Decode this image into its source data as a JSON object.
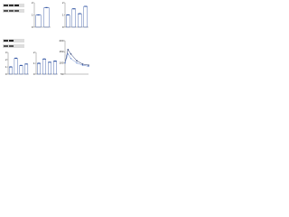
{
  "chart_data": [
    {
      "type": "bar",
      "categories": [
        null,
        null
      ],
      "series": [
        {
          "color": "#2b4fa0",
          "values": [
            1,
            1.6
          ]
        }
      ],
      "ylim": [
        0,
        2
      ],
      "yticks": [
        0,
        1,
        2
      ]
    },
    {
      "type": "bar",
      "categories": [
        null,
        null,
        null,
        null
      ],
      "series": [
        {
          "color": "#2b4fa0",
          "values": [
            1,
            1.5,
            1.1,
            1.7
          ]
        }
      ],
      "ylim": [
        0,
        2
      ],
      "yticks": [
        0,
        1,
        2
      ]
    },
    {
      "type": "bar",
      "categories": [
        null,
        null,
        null,
        null
      ],
      "series": [
        {
          "color": "#2b4fa0",
          "values": [
            1,
            2.2,
            1.2,
            1.4
          ]
        }
      ],
      "ylim": [
        0,
        3
      ],
      "yticks": [
        0,
        1,
        2,
        3
      ]
    },
    {
      "type": "bar",
      "categories": [
        null,
        null,
        null,
        null
      ],
      "series": [
        {
          "color": "#2b4fa0",
          "values": [
            1,
            1.4,
            1.1,
            1.2
          ]
        }
      ],
      "ylim": [
        0,
        2
      ],
      "yticks": [
        0,
        1,
        2
      ]
    },
    {
      "type": "line",
      "x": [
        0,
        15,
        30,
        60,
        90,
        120
      ],
      "series": [
        {
          "color": "#1a2f6b",
          "values": [
            100,
            160,
            140,
            110,
            95,
            90
          ]
        },
        {
          "color": "#6f8fd0",
          "values": [
            100,
            140,
            120,
            100,
            90,
            85
          ]
        }
      ],
      "xlim": [
        0,
        120
      ],
      "ylim": [
        50,
        200
      ],
      "yticks": [
        50,
        100,
        150,
        200
      ]
    }
  ]
}
